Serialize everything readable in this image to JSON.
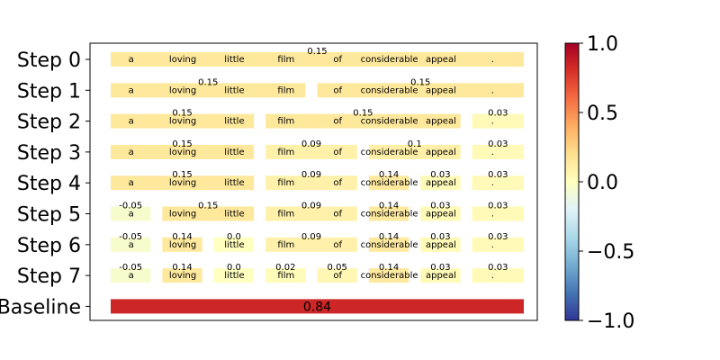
{
  "chart_data": {
    "type": "heatmap",
    "rows": [
      "Step 0",
      "Step 1",
      "Step 2",
      "Step 3",
      "Step 4",
      "Step 5",
      "Step 6",
      "Step 7",
      "Baseline"
    ],
    "tokens": [
      "a",
      "loving",
      "little",
      "film",
      "of",
      "considerable",
      "appeal",
      "."
    ],
    "segments": [
      [
        {
          "from": 0,
          "to": 7,
          "value": 0.15
        }
      ],
      [
        {
          "from": 0,
          "to": 3,
          "value": 0.15
        },
        {
          "from": 4,
          "to": 7,
          "value": 0.15
        }
      ],
      [
        {
          "from": 0,
          "to": 2,
          "value": 0.15
        },
        {
          "from": 3,
          "to": 6,
          "value": 0.15
        },
        {
          "from": 7,
          "to": 7,
          "value": 0.03
        }
      ],
      [
        {
          "from": 0,
          "to": 2,
          "value": 0.15
        },
        {
          "from": 3,
          "to": 4,
          "value": 0.09
        },
        {
          "from": 5,
          "to": 6,
          "value": 0.1
        },
        {
          "from": 7,
          "to": 7,
          "value": 0.03
        }
      ],
      [
        {
          "from": 0,
          "to": 2,
          "value": 0.15
        },
        {
          "from": 3,
          "to": 4,
          "value": 0.09
        },
        {
          "from": 5,
          "to": 5,
          "value": 0.14
        },
        {
          "from": 6,
          "to": 6,
          "value": 0.03
        },
        {
          "from": 7,
          "to": 7,
          "value": 0.03
        }
      ],
      [
        {
          "from": 0,
          "to": 0,
          "value": -0.05
        },
        {
          "from": 1,
          "to": 2,
          "value": 0.15
        },
        {
          "from": 3,
          "to": 4,
          "value": 0.09
        },
        {
          "from": 5,
          "to": 5,
          "value": 0.14
        },
        {
          "from": 6,
          "to": 6,
          "value": 0.03
        },
        {
          "from": 7,
          "to": 7,
          "value": 0.03
        }
      ],
      [
        {
          "from": 0,
          "to": 0,
          "value": -0.05
        },
        {
          "from": 1,
          "to": 1,
          "value": 0.14
        },
        {
          "from": 2,
          "to": 2,
          "value": 0.0
        },
        {
          "from": 3,
          "to": 4,
          "value": 0.09
        },
        {
          "from": 5,
          "to": 5,
          "value": 0.14
        },
        {
          "from": 6,
          "to": 6,
          "value": 0.03
        },
        {
          "from": 7,
          "to": 7,
          "value": 0.03
        }
      ],
      [
        {
          "from": 0,
          "to": 0,
          "value": -0.05
        },
        {
          "from": 1,
          "to": 1,
          "value": 0.14
        },
        {
          "from": 2,
          "to": 2,
          "value": 0.0
        },
        {
          "from": 3,
          "to": 3,
          "value": 0.02
        },
        {
          "from": 4,
          "to": 4,
          "value": 0.05
        },
        {
          "from": 5,
          "to": 5,
          "value": 0.14
        },
        {
          "from": 6,
          "to": 6,
          "value": 0.03
        },
        {
          "from": 7,
          "to": 7,
          "value": 0.03
        }
      ],
      [
        {
          "from": 0,
          "to": 7,
          "value": 0.84
        }
      ]
    ],
    "segment_label_text": [
      [
        "0.15"
      ],
      [
        "0.15",
        "0.15"
      ],
      [
        "0.15",
        "0.15",
        "0.03"
      ],
      [
        "0.15",
        "0.09",
        "0.1",
        "0.03"
      ],
      [
        "0.15",
        "0.09",
        "0.14",
        "0.03",
        "0.03"
      ],
      [
        "-0.05",
        "0.15",
        "0.09",
        "0.14",
        "0.03",
        "0.03"
      ],
      [
        "-0.05",
        "0.14",
        "0.0",
        "0.09",
        "0.14",
        "0.03",
        "0.03"
      ],
      [
        "-0.05",
        "0.14",
        "0.0",
        "0.02",
        "0.05",
        "0.14",
        "0.03",
        "0.03"
      ],
      [
        "0.84"
      ]
    ],
    "show_tokens": [
      true,
      true,
      true,
      true,
      true,
      true,
      true,
      true,
      false
    ],
    "colorbar": {
      "colormap": "RdYlBu_r",
      "range": [
        -1.0,
        1.0
      ],
      "ticks": [
        "1.0",
        "0.5",
        "0.0",
        "−0.5",
        "−1.0"
      ],
      "tick_values": [
        1.0,
        0.5,
        0.0,
        -0.5,
        -1.0
      ]
    }
  }
}
